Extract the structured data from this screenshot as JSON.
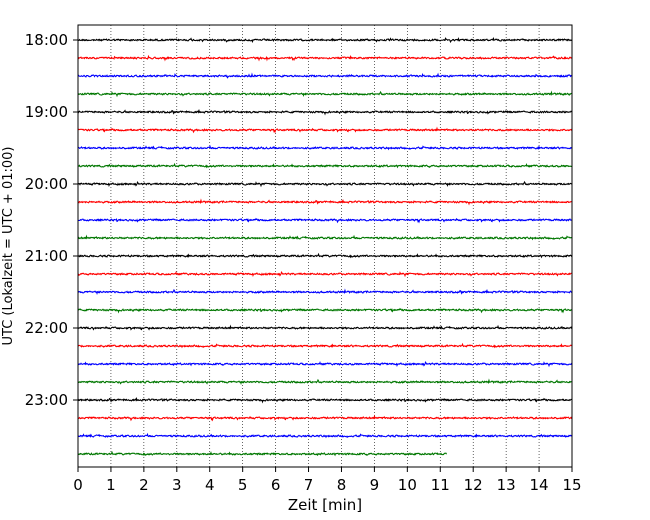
{
  "chart_data": {
    "type": "line",
    "title": "",
    "xlabel": "Zeit  [min]",
    "ylabel": "UTC (Lokalzeit = UTC + 01:00)",
    "xlim": [
      0,
      15
    ],
    "x_ticks": [
      "0",
      "1",
      "2",
      "3",
      "4",
      "5",
      "6",
      "7",
      "8",
      "9",
      "10",
      "11",
      "12",
      "13",
      "14",
      "15"
    ],
    "y_ticks": [
      "18:00",
      "19:00",
      "20:00",
      "21:00",
      "22:00",
      "23:00"
    ],
    "grid": "vertical dotted",
    "trace_colors": [
      "#000000",
      "#ff0000",
      "#0000ff",
      "#007700"
    ],
    "series": [
      {
        "start": "18:00",
        "color": "#000000",
        "x_start": 0,
        "x_end": 15
      },
      {
        "start": "18:15",
        "color": "#ff0000",
        "x_start": 0,
        "x_end": 15
      },
      {
        "start": "18:30",
        "color": "#0000ff",
        "x_start": 0,
        "x_end": 15
      },
      {
        "start": "18:45",
        "color": "#007700",
        "x_start": 0,
        "x_end": 15
      },
      {
        "start": "19:00",
        "color": "#000000",
        "x_start": 0,
        "x_end": 15
      },
      {
        "start": "19:15",
        "color": "#ff0000",
        "x_start": 0,
        "x_end": 15
      },
      {
        "start": "19:30",
        "color": "#0000ff",
        "x_start": 0,
        "x_end": 15
      },
      {
        "start": "19:45",
        "color": "#007700",
        "x_start": 0,
        "x_end": 15
      },
      {
        "start": "20:00",
        "color": "#000000",
        "x_start": 0,
        "x_end": 15
      },
      {
        "start": "20:15",
        "color": "#ff0000",
        "x_start": 0,
        "x_end": 15
      },
      {
        "start": "20:30",
        "color": "#0000ff",
        "x_start": 0,
        "x_end": 15
      },
      {
        "start": "20:45",
        "color": "#007700",
        "x_start": 0,
        "x_end": 15
      },
      {
        "start": "21:00",
        "color": "#000000",
        "x_start": 0,
        "x_end": 15
      },
      {
        "start": "21:15",
        "color": "#ff0000",
        "x_start": 0,
        "x_end": 15
      },
      {
        "start": "21:30",
        "color": "#0000ff",
        "x_start": 0,
        "x_end": 15
      },
      {
        "start": "21:45",
        "color": "#007700",
        "x_start": 0,
        "x_end": 15
      },
      {
        "start": "22:00",
        "color": "#000000",
        "x_start": 0,
        "x_end": 15
      },
      {
        "start": "22:15",
        "color": "#ff0000",
        "x_start": 0,
        "x_end": 15
      },
      {
        "start": "22:30",
        "color": "#0000ff",
        "x_start": 0,
        "x_end": 15
      },
      {
        "start": "22:45",
        "color": "#007700",
        "x_start": 0,
        "x_end": 15
      },
      {
        "start": "23:00",
        "color": "#000000",
        "x_start": 0,
        "x_end": 15
      },
      {
        "start": "23:15",
        "color": "#ff0000",
        "x_start": 0,
        "x_end": 15
      },
      {
        "start": "23:30",
        "color": "#0000ff",
        "x_start": 0,
        "x_end": 15
      },
      {
        "start": "23:45",
        "color": "#007700",
        "x_start": 0,
        "x_end": 11.2
      }
    ]
  }
}
